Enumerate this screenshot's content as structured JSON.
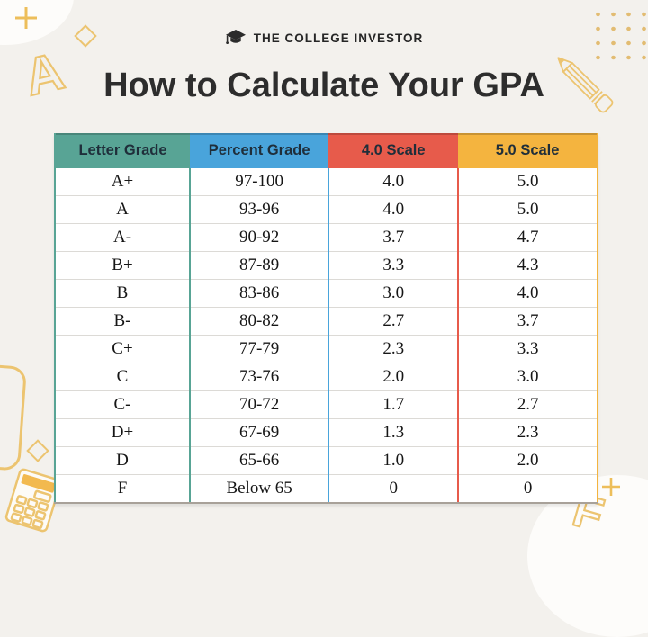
{
  "brand": {
    "name": "THE COLLEGE INVESTOR"
  },
  "page": {
    "title": "How to Calculate Your GPA"
  },
  "chart_data": {
    "type": "table",
    "title": "How to Calculate Your GPA",
    "columns": [
      "Letter Grade",
      "Percent Grade",
      "4.0 Scale",
      "5.0 Scale"
    ],
    "header_colors": [
      "#58a495",
      "#49a4db",
      "#e75b4b",
      "#f4b43f"
    ],
    "rows": [
      [
        "A+",
        "97-100",
        "4.0",
        "5.0"
      ],
      [
        "A",
        "93-96",
        "4.0",
        "5.0"
      ],
      [
        "A-",
        "90-92",
        "3.7",
        "4.7"
      ],
      [
        "B+",
        "87-89",
        "3.3",
        "4.3"
      ],
      [
        "B",
        "83-86",
        "3.0",
        "4.0"
      ],
      [
        "B-",
        "80-82",
        "2.7",
        "3.7"
      ],
      [
        "C+",
        "77-79",
        "2.3",
        "3.3"
      ],
      [
        "C",
        "73-76",
        "2.0",
        "3.0"
      ],
      [
        "C-",
        "70-72",
        "1.7",
        "2.7"
      ],
      [
        "D+",
        "67-69",
        "1.3",
        "2.3"
      ],
      [
        "D",
        "65-66",
        "1.0",
        "2.0"
      ],
      [
        "F",
        "Below 65",
        "0",
        "0"
      ]
    ]
  },
  "decorations": {
    "letter_a": "A",
    "letter_f": "F",
    "accent_yellow": "#ecc470"
  }
}
